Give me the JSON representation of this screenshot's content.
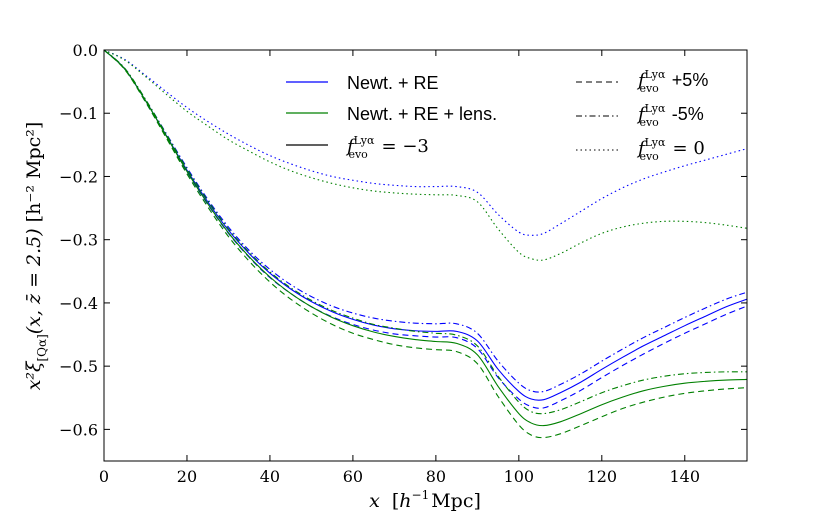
{
  "chart_data": {
    "type": "line",
    "title": "",
    "xlabel": "x [h^{-1} Mpc]",
    "ylabel": "x^2 ξ_{[Qα]}(x, z̄ = 2.5) [h^{-2} Mpc^2]",
    "xlabel_parts": {
      "var": "x",
      "unit_open": "[",
      "h": "h",
      "exp": "−1",
      "unit": "Mpc",
      "unit_close": "]"
    },
    "ylabel_parts": {
      "main": "x²ξ",
      "sub": "[Qα]",
      "args": "(x, z̄ = 2.5)",
      "unit": "[h⁻² Mpc²]"
    },
    "xlim": [
      0,
      155
    ],
    "ylim": [
      -0.65,
      0.0
    ],
    "grid": false,
    "x_ticks": [
      0,
      20,
      40,
      60,
      80,
      100,
      120,
      140
    ],
    "x_tick_labels": [
      "0",
      "20",
      "40",
      "60",
      "80",
      "100",
      "120",
      "140"
    ],
    "y_ticks": [
      0.0,
      -0.1,
      -0.2,
      -0.3,
      -0.4,
      -0.5,
      -0.6
    ],
    "y_tick_labels": [
      "0.0",
      "−0.1",
      "−0.2",
      "−0.3",
      "−0.4",
      "−0.5",
      "−0.6"
    ],
    "colors": {
      "blue": "#0000ff",
      "green": "#008000",
      "black": "#000000"
    },
    "legend": {
      "placement": "top",
      "color_entries": [
        {
          "label": "Newt. + RE",
          "color": "#0000ff",
          "style": "solid"
        },
        {
          "label": "Newt. + RE + lens.",
          "color": "#008000",
          "style": "solid"
        },
        {
          "label_f": "f",
          "label_sup": "Lyα",
          "label_sub": "evo",
          "label_rest": " = −3",
          "color": "#000000",
          "style": "solid"
        }
      ],
      "style_entries": [
        {
          "label_f": "f",
          "label_sup": "Lyα",
          "label_sub": "evo",
          "label_rest": " +5%",
          "style": "dashed"
        },
        {
          "label_f": "f",
          "label_sup": "Lyα",
          "label_sub": "evo",
          "label_rest": " -5%",
          "style": "dashdot"
        },
        {
          "label_f": "f",
          "label_sup": "Lyα",
          "label_sub": "evo",
          "label_rest": " = 0",
          "style": "dotted"
        }
      ]
    },
    "x": [
      0,
      5,
      10,
      15,
      20,
      25,
      30,
      35,
      40,
      45,
      50,
      55,
      60,
      65,
      70,
      75,
      80,
      85,
      90,
      95,
      100,
      103,
      106,
      110,
      115,
      120,
      125,
      130,
      135,
      140,
      145,
      150,
      155
    ],
    "series": [
      {
        "name": "Newt. + RE, f=-3",
        "color": "#0000ff",
        "style": "solid",
        "values": [
          0,
          -0.03,
          -0.08,
          -0.135,
          -0.19,
          -0.24,
          -0.285,
          -0.322,
          -0.353,
          -0.378,
          -0.398,
          -0.414,
          -0.426,
          -0.435,
          -0.441,
          -0.444,
          -0.445,
          -0.445,
          -0.46,
          -0.505,
          -0.54,
          -0.552,
          -0.553,
          -0.542,
          -0.525,
          -0.505,
          -0.486,
          -0.468,
          -0.452,
          -0.436,
          -0.421,
          -0.406,
          -0.394
        ]
      },
      {
        "name": "Newt. + RE, +5%",
        "color": "#0000ff",
        "style": "dashed",
        "values": [
          0,
          -0.03,
          -0.082,
          -0.138,
          -0.193,
          -0.244,
          -0.29,
          -0.328,
          -0.36,
          -0.385,
          -0.406,
          -0.422,
          -0.434,
          -0.443,
          -0.449,
          -0.452,
          -0.454,
          -0.455,
          -0.472,
          -0.518,
          -0.552,
          -0.564,
          -0.566,
          -0.555,
          -0.538,
          -0.518,
          -0.499,
          -0.481,
          -0.464,
          -0.448,
          -0.433,
          -0.418,
          -0.405
        ]
      },
      {
        "name": "Newt. + RE, -5%",
        "color": "#0000ff",
        "style": "dashdot",
        "values": [
          0,
          -0.029,
          -0.078,
          -0.132,
          -0.186,
          -0.236,
          -0.28,
          -0.317,
          -0.347,
          -0.371,
          -0.39,
          -0.405,
          -0.416,
          -0.424,
          -0.429,
          -0.432,
          -0.433,
          -0.433,
          -0.448,
          -0.492,
          -0.527,
          -0.539,
          -0.54,
          -0.529,
          -0.512,
          -0.492,
          -0.473,
          -0.455,
          -0.439,
          -0.423,
          -0.408,
          -0.394,
          -0.383
        ]
      },
      {
        "name": "Newt. + RE + lens., f=-3",
        "color": "#008000",
        "style": "solid",
        "values": [
          0,
          -0.03,
          -0.08,
          -0.136,
          -0.192,
          -0.243,
          -0.289,
          -0.327,
          -0.359,
          -0.385,
          -0.406,
          -0.423,
          -0.436,
          -0.446,
          -0.453,
          -0.458,
          -0.461,
          -0.464,
          -0.482,
          -0.532,
          -0.575,
          -0.59,
          -0.594,
          -0.588,
          -0.575,
          -0.561,
          -0.549,
          -0.539,
          -0.532,
          -0.527,
          -0.524,
          -0.522,
          -0.521
        ]
      },
      {
        "name": "Newt. + RE + lens., +5%",
        "color": "#008000",
        "style": "dashed",
        "values": [
          0,
          -0.031,
          -0.082,
          -0.139,
          -0.196,
          -0.248,
          -0.295,
          -0.334,
          -0.367,
          -0.394,
          -0.416,
          -0.434,
          -0.448,
          -0.458,
          -0.466,
          -0.471,
          -0.474,
          -0.477,
          -0.496,
          -0.548,
          -0.593,
          -0.609,
          -0.613,
          -0.607,
          -0.594,
          -0.58,
          -0.567,
          -0.557,
          -0.549,
          -0.543,
          -0.539,
          -0.536,
          -0.534
        ]
      },
      {
        "name": "Newt. + RE + lens., -5%",
        "color": "#008000",
        "style": "dashdot",
        "values": [
          0,
          -0.029,
          -0.078,
          -0.133,
          -0.188,
          -0.238,
          -0.283,
          -0.32,
          -0.351,
          -0.376,
          -0.396,
          -0.412,
          -0.424,
          -0.434,
          -0.44,
          -0.445,
          -0.448,
          -0.451,
          -0.468,
          -0.516,
          -0.557,
          -0.572,
          -0.575,
          -0.569,
          -0.556,
          -0.542,
          -0.531,
          -0.522,
          -0.516,
          -0.512,
          -0.51,
          -0.509,
          -0.509
        ]
      },
      {
        "name": "Newt. + RE, f=0",
        "color": "#0000ff",
        "style": "dotted",
        "values": [
          0,
          -0.015,
          -0.04,
          -0.066,
          -0.091,
          -0.113,
          -0.133,
          -0.151,
          -0.167,
          -0.18,
          -0.191,
          -0.2,
          -0.206,
          -0.211,
          -0.214,
          -0.216,
          -0.216,
          -0.216,
          -0.225,
          -0.26,
          -0.288,
          -0.293,
          -0.29,
          -0.275,
          -0.255,
          -0.235,
          -0.218,
          -0.204,
          -0.193,
          -0.183,
          -0.174,
          -0.165,
          -0.156
        ]
      },
      {
        "name": "Newt. + RE + lens., f=0",
        "color": "#008000",
        "style": "dotted",
        "values": [
          0,
          -0.016,
          -0.042,
          -0.07,
          -0.097,
          -0.12,
          -0.142,
          -0.16,
          -0.177,
          -0.191,
          -0.202,
          -0.211,
          -0.218,
          -0.223,
          -0.226,
          -0.228,
          -0.229,
          -0.23,
          -0.24,
          -0.283,
          -0.32,
          -0.33,
          -0.332,
          -0.322,
          -0.305,
          -0.29,
          -0.28,
          -0.274,
          -0.271,
          -0.271,
          -0.273,
          -0.277,
          -0.282
        ]
      }
    ]
  }
}
